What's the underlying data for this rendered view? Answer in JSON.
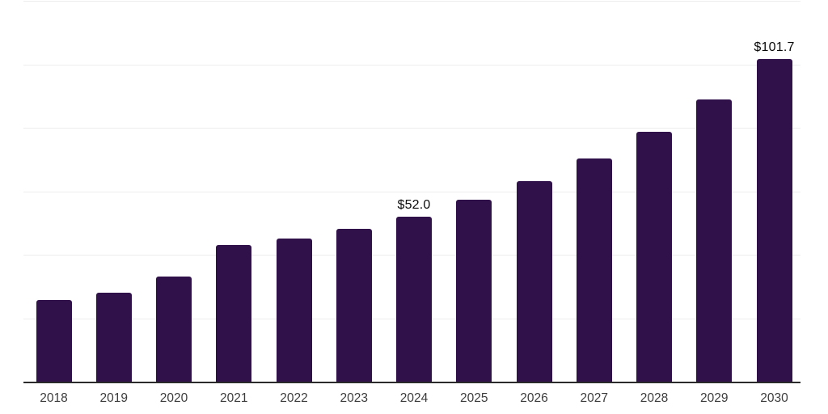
{
  "chart_data": {
    "type": "bar",
    "title": "",
    "xlabel": "",
    "ylabel": "",
    "categories": [
      "2018",
      "2019",
      "2020",
      "2021",
      "2022",
      "2023",
      "2024",
      "2025",
      "2026",
      "2027",
      "2028",
      "2029",
      "2030"
    ],
    "values": [
      25.7,
      28.1,
      33.0,
      43.1,
      45.0,
      48.2,
      52.0,
      57.3,
      63.2,
      70.2,
      78.7,
      89.0,
      101.7
    ],
    "data_labels": [
      {
        "category": "2024",
        "text": "$52.0"
      },
      {
        "category": "2030",
        "text": "$101.7"
      }
    ],
    "ylim": [
      0,
      120
    ],
    "gridline_step": 20,
    "grid": true,
    "legend": false,
    "y_tick_labels_visible": false
  },
  "style": {
    "bar_color": "#311149",
    "gridline_color": "#ededed",
    "axis_line_color": "#2b2b2b",
    "tick_label_color": "#3d3d3d",
    "data_label_color": "#0a0a0a",
    "background": "#ffffff"
  }
}
